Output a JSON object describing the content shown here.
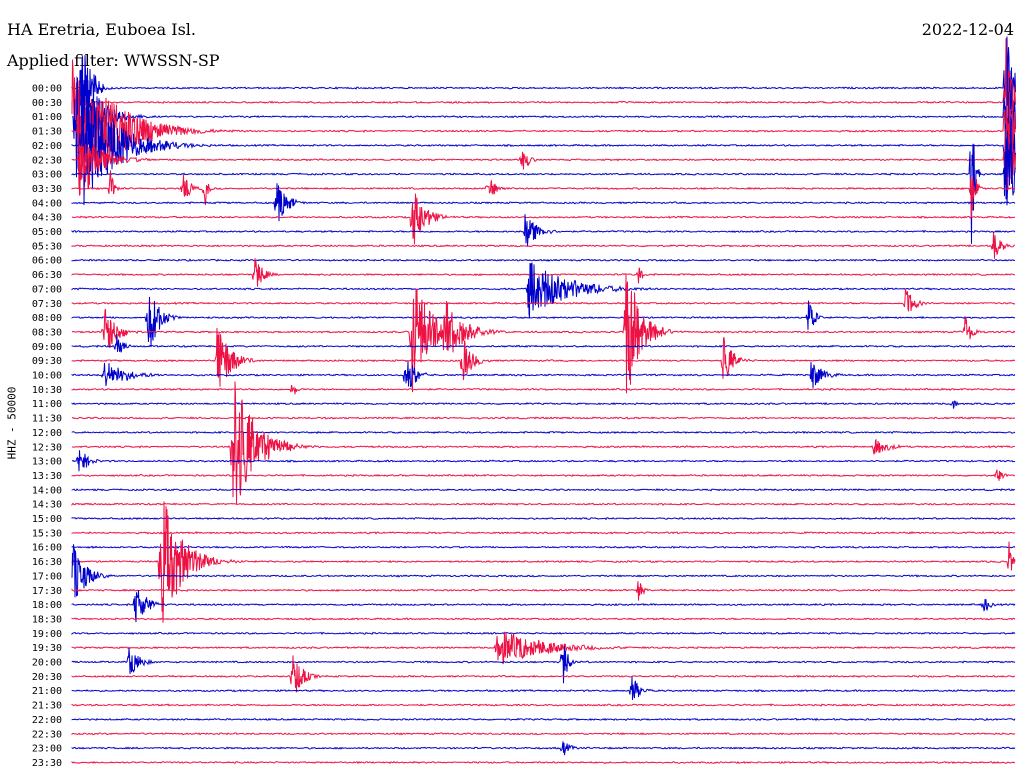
{
  "header": {
    "station": "HA Eretria, Euboea Isl.",
    "filter": "Applied filter: WWSSN-SP",
    "date": "2022-12-04"
  },
  "channel_label": "HHZ - 50000",
  "colors": {
    "blue": "#0000cc",
    "red": "#ee1144"
  },
  "chart_data": {
    "type": "line",
    "title": "HA Eretria, Euboea Isl.",
    "subtitle": "Applied filter: WWSSN-SP",
    "date": "2022-12-04",
    "ylabel": "HHZ - 50000",
    "row_minutes": 30,
    "row_labels": [
      "00:00",
      "00:30",
      "01:00",
      "01:30",
      "02:00",
      "02:30",
      "03:00",
      "03:30",
      "04:00",
      "04:30",
      "05:00",
      "05:30",
      "06:00",
      "06:30",
      "07:00",
      "07:30",
      "08:00",
      "08:30",
      "09:00",
      "09:30",
      "10:00",
      "10:30",
      "11:00",
      "11:30",
      "12:00",
      "12:30",
      "13:00",
      "13:30",
      "14:00",
      "14:30",
      "15:00",
      "15:30",
      "16:00",
      "16:30",
      "17:00",
      "17:30",
      "18:00",
      "18:30",
      "19:00",
      "19:30",
      "20:00",
      "20:30",
      "21:00",
      "21:30",
      "22:00",
      "22:30",
      "23:00",
      "23:30"
    ],
    "row_colors": [
      "blue",
      "red"
    ],
    "events": [
      {
        "row": 0,
        "minute": 0.3,
        "amp": 1,
        "dur": 0.5
      },
      {
        "row": 1,
        "minute": 0.0,
        "amp": 0.6,
        "dur": 0.4
      },
      {
        "row": 2,
        "minute": 0.1,
        "amp": 1,
        "dur": 1.2
      },
      {
        "row": 3,
        "minute": 0.2,
        "amp": 1,
        "dur": 2.5
      },
      {
        "row": 4,
        "minute": 0.3,
        "amp": 0.85,
        "dur": 2.2
      },
      {
        "row": 4,
        "minute": 1.3,
        "amp": 0.3,
        "dur": 0.8
      },
      {
        "row": 5,
        "minute": 0.2,
        "amp": 0.4,
        "dur": 1.5
      },
      {
        "row": 5,
        "minute": 14.3,
        "amp": 0.2,
        "dur": 0.4
      },
      {
        "row": 0,
        "minute": 29.7,
        "amp": 1,
        "dur": 0.4
      },
      {
        "row": 1,
        "minute": 29.7,
        "amp": 1,
        "dur": 0.4
      },
      {
        "row": 2,
        "minute": 29.7,
        "amp": 1,
        "dur": 0.4
      },
      {
        "row": 3,
        "minute": 29.7,
        "amp": 1,
        "dur": 0.4
      },
      {
        "row": 4,
        "minute": 29.7,
        "amp": 1,
        "dur": 0.4
      },
      {
        "row": 5,
        "minute": 29.7,
        "amp": 1,
        "dur": 0.4
      },
      {
        "row": 6,
        "minute": 29.7,
        "amp": 1,
        "dur": 0.4
      },
      {
        "row": 6,
        "minute": 28.6,
        "amp": 1,
        "dur": 0.2
      },
      {
        "row": 7,
        "minute": 28.6,
        "amp": 0.6,
        "dur": 0.2
      },
      {
        "row": 7,
        "minute": 1.2,
        "amp": 0.3,
        "dur": 0.2
      },
      {
        "row": 7,
        "minute": 3.5,
        "amp": 0.2,
        "dur": 0.5
      },
      {
        "row": 7,
        "minute": 4.2,
        "amp": 0.3,
        "dur": 0.2
      },
      {
        "row": 7,
        "minute": 13.2,
        "amp": 0.2,
        "dur": 0.5
      },
      {
        "row": 8,
        "minute": 6.5,
        "amp": 0.35,
        "dur": 0.6
      },
      {
        "row": 9,
        "minute": 10.8,
        "amp": 0.45,
        "dur": 0.8
      },
      {
        "row": 10,
        "minute": 14.4,
        "amp": 0.25,
        "dur": 0.8
      },
      {
        "row": 11,
        "minute": 29.3,
        "amp": 0.2,
        "dur": 0.5
      },
      {
        "row": 13,
        "minute": 5.8,
        "amp": 0.25,
        "dur": 0.5
      },
      {
        "row": 13,
        "minute": 18.0,
        "amp": 0.15,
        "dur": 0.3
      },
      {
        "row": 14,
        "minute": 14.5,
        "amp": 0.4,
        "dur": 2.5
      },
      {
        "row": 15,
        "minute": 26.5,
        "amp": 0.25,
        "dur": 0.5
      },
      {
        "row": 16,
        "minute": 2.4,
        "amp": 0.6,
        "dur": 0.6
      },
      {
        "row": 16,
        "minute": 23.4,
        "amp": 0.25,
        "dur": 0.4
      },
      {
        "row": 17,
        "minute": 1.0,
        "amp": 0.35,
        "dur": 0.8
      },
      {
        "row": 17,
        "minute": 10.8,
        "amp": 0.8,
        "dur": 1.2
      },
      {
        "row": 17,
        "minute": 11.8,
        "amp": 0.5,
        "dur": 1.2
      },
      {
        "row": 17,
        "minute": 17.6,
        "amp": 1,
        "dur": 0.9
      },
      {
        "row": 17,
        "minute": 28.4,
        "amp": 0.25,
        "dur": 0.4
      },
      {
        "row": 18,
        "minute": 1.4,
        "amp": 0.2,
        "dur": 0.4
      },
      {
        "row": 19,
        "minute": 4.6,
        "amp": 0.55,
        "dur": 0.8
      },
      {
        "row": 19,
        "minute": 12.4,
        "amp": 0.35,
        "dur": 0.6
      },
      {
        "row": 19,
        "minute": 20.7,
        "amp": 0.35,
        "dur": 0.6
      },
      {
        "row": 20,
        "minute": 1.0,
        "amp": 0.2,
        "dur": 1.5
      },
      {
        "row": 20,
        "minute": 10.6,
        "amp": 0.3,
        "dur": 0.6
      },
      {
        "row": 20,
        "minute": 23.5,
        "amp": 0.2,
        "dur": 0.8
      },
      {
        "row": 21,
        "minute": 7.0,
        "amp": 0.2,
        "dur": 0.2
      },
      {
        "row": 22,
        "minute": 28.0,
        "amp": 0.1,
        "dur": 0.3
      },
      {
        "row": 25,
        "minute": 5.1,
        "amp": 1,
        "dur": 1.4
      },
      {
        "row": 25,
        "minute": 25.5,
        "amp": 0.12,
        "dur": 1.0
      },
      {
        "row": 26,
        "minute": 0.2,
        "amp": 0.2,
        "dur": 0.6
      },
      {
        "row": 27,
        "minute": 29.4,
        "amp": 0.15,
        "dur": 0.3
      },
      {
        "row": 33,
        "minute": 2.8,
        "amp": 1,
        "dur": 1.3
      },
      {
        "row": 33,
        "minute": 29.8,
        "amp": 0.3,
        "dur": 0.2
      },
      {
        "row": 34,
        "minute": 0.0,
        "amp": 0.45,
        "dur": 0.8
      },
      {
        "row": 35,
        "minute": 18.0,
        "amp": 0.15,
        "dur": 0.3
      },
      {
        "row": 36,
        "minute": 2.0,
        "amp": 0.3,
        "dur": 0.7
      },
      {
        "row": 36,
        "minute": 29.0,
        "amp": 0.12,
        "dur": 0.4
      },
      {
        "row": 39,
        "minute": 13.5,
        "amp": 0.25,
        "dur": 3.0
      },
      {
        "row": 40,
        "minute": 1.8,
        "amp": 0.25,
        "dur": 0.6
      },
      {
        "row": 40,
        "minute": 15.6,
        "amp": 0.35,
        "dur": 0.3
      },
      {
        "row": 41,
        "minute": 7.0,
        "amp": 0.35,
        "dur": 0.6
      },
      {
        "row": 42,
        "minute": 17.8,
        "amp": 0.2,
        "dur": 0.5
      },
      {
        "row": 46,
        "minute": 15.6,
        "amp": 0.12,
        "dur": 0.5
      }
    ]
  }
}
